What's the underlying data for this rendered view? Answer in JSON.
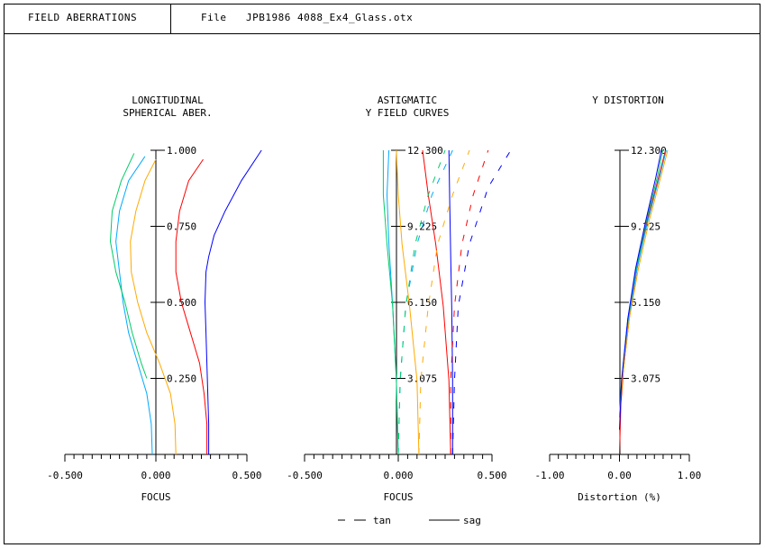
{
  "header": {
    "title": "FIELD ABERRATIONS",
    "file_label": "File",
    "file_name": "JPB1986 4088_Ex4_Glass.otx"
  },
  "chart_data": [
    {
      "type": "line",
      "title": [
        "LONGITUDINAL",
        "SPHERICAL ABER."
      ],
      "xlabel": "FOCUS",
      "xlim": [
        -0.5,
        0.5
      ],
      "xticks": [
        "-0.500",
        "0.000",
        "0.500"
      ],
      "ylim": [
        0,
        1
      ],
      "yticks": [
        "0.250",
        "0.500",
        "0.750",
        "1.000"
      ],
      "ytick_values": [
        0.25,
        0.5,
        0.75,
        1.0
      ],
      "series": [
        {
          "color": "#0000ff",
          "points": [
            [
              0.29,
              0
            ],
            [
              0.29,
              0.1
            ],
            [
              0.285,
              0.2
            ],
            [
              0.28,
              0.3
            ],
            [
              0.275,
              0.4
            ],
            [
              0.27,
              0.5
            ],
            [
              0.275,
              0.6
            ],
            [
              0.29,
              0.65
            ],
            [
              0.32,
              0.72
            ],
            [
              0.38,
              0.8
            ],
            [
              0.47,
              0.9
            ],
            [
              0.58,
              1.0
            ]
          ]
        },
        {
          "color": "#ff0000",
          "points": [
            [
              0.28,
              0
            ],
            [
              0.28,
              0.1
            ],
            [
              0.265,
              0.2
            ],
            [
              0.24,
              0.3
            ],
            [
              0.19,
              0.4
            ],
            [
              0.14,
              0.5
            ],
            [
              0.11,
              0.6
            ],
            [
              0.11,
              0.7
            ],
            [
              0.13,
              0.8
            ],
            [
              0.18,
              0.9
            ],
            [
              0.26,
              0.97
            ]
          ]
        },
        {
          "color": "#ffaa00",
          "points": [
            [
              0.11,
              0
            ],
            [
              0.105,
              0.1
            ],
            [
              0.08,
              0.2
            ],
            [
              0.02,
              0.3
            ],
            [
              -0.05,
              0.4
            ],
            [
              -0.1,
              0.5
            ],
            [
              -0.135,
              0.6
            ],
            [
              -0.14,
              0.7
            ],
            [
              -0.11,
              0.8
            ],
            [
              -0.06,
              0.9
            ],
            [
              0.0,
              0.97
            ]
          ]
        },
        {
          "color": "#00aaff",
          "points": [
            [
              -0.02,
              0
            ],
            [
              -0.025,
              0.1
            ],
            [
              -0.05,
              0.2
            ],
            [
              -0.1,
              0.3
            ],
            [
              -0.15,
              0.4
            ],
            [
              -0.18,
              0.5
            ],
            [
              -0.2,
              0.6
            ],
            [
              -0.22,
              0.7
            ],
            [
              -0.2,
              0.8
            ],
            [
              -0.15,
              0.9
            ],
            [
              -0.06,
              0.98
            ]
          ]
        },
        {
          "color": "#00cc66",
          "points": [
            [
              -0.05,
              0.25
            ],
            [
              -0.08,
              0.3
            ],
            [
              -0.13,
              0.4
            ],
            [
              -0.17,
              0.5
            ],
            [
              -0.22,
              0.6
            ],
            [
              -0.25,
              0.7
            ],
            [
              -0.24,
              0.8
            ],
            [
              -0.19,
              0.9
            ],
            [
              -0.12,
              0.99
            ]
          ]
        }
      ]
    },
    {
      "type": "line",
      "title": [
        "ASTIGMATIC",
        "Y FIELD CURVES"
      ],
      "xlabel": "FOCUS",
      "xlim": [
        -0.5,
        0.5
      ],
      "xticks": [
        "-0.500",
        "0.000",
        "0.500"
      ],
      "ylim": [
        0,
        12.3
      ],
      "yticks": [
        "3.075",
        "6.150",
        "9.225",
        "12.300"
      ],
      "ytick_values": [
        3.075,
        6.15,
        9.225,
        12.3
      ],
      "legend": [
        "tan",
        "sag"
      ],
      "series": [
        {
          "color": "#0000ff",
          "style": "sag",
          "points": [
            [
              0.29,
              0
            ],
            [
              0.29,
              3
            ],
            [
              0.285,
              6
            ],
            [
              0.28,
              8
            ],
            [
              0.275,
              10
            ],
            [
              0.27,
              12.3
            ]
          ]
        },
        {
          "color": "#0000ff",
          "style": "tan",
          "points": [
            [
              0.29,
              0
            ],
            [
              0.3,
              3
            ],
            [
              0.32,
              6
            ],
            [
              0.38,
              8.5
            ],
            [
              0.48,
              10.8
            ],
            [
              0.6,
              12.3
            ]
          ]
        },
        {
          "color": "#ff0000",
          "style": "sag",
          "points": [
            [
              0.28,
              0
            ],
            [
              0.27,
              3
            ],
            [
              0.24,
              6
            ],
            [
              0.2,
              8.5
            ],
            [
              0.16,
              10.5
            ],
            [
              0.13,
              12.3
            ]
          ]
        },
        {
          "color": "#ff0000",
          "style": "tan",
          "points": [
            [
              0.28,
              0
            ],
            [
              0.28,
              3
            ],
            [
              0.3,
              6
            ],
            [
              0.34,
              8.5
            ],
            [
              0.4,
              10.5
            ],
            [
              0.48,
              12.3
            ]
          ]
        },
        {
          "color": "#ffaa00",
          "style": "sag",
          "points": [
            [
              0.11,
              0
            ],
            [
              0.1,
              3
            ],
            [
              0.06,
              6
            ],
            [
              0.02,
              8.5
            ],
            [
              0.0,
              10.5
            ],
            [
              -0.01,
              12.3
            ]
          ]
        },
        {
          "color": "#ffaa00",
          "style": "tan",
          "points": [
            [
              0.11,
              0
            ],
            [
              0.12,
              3
            ],
            [
              0.16,
              6
            ],
            [
              0.21,
              8.5
            ],
            [
              0.29,
              10.5
            ],
            [
              0.38,
              12.3
            ]
          ]
        },
        {
          "color": "#00aaff",
          "style": "sag",
          "points": [
            [
              0.0,
              0
            ],
            [
              -0.01,
              3
            ],
            [
              -0.03,
              6
            ],
            [
              -0.05,
              8.5
            ],
            [
              -0.06,
              10.5
            ],
            [
              -0.05,
              12.3
            ]
          ]
        },
        {
          "color": "#00aaff",
          "style": "tan",
          "points": [
            [
              0.0,
              0
            ],
            [
              0.01,
              3
            ],
            [
              0.04,
              6
            ],
            [
              0.1,
              8.5
            ],
            [
              0.18,
              10.5
            ],
            [
              0.29,
              12.3
            ]
          ]
        },
        {
          "color": "#00cc66",
          "style": "sag",
          "points": [
            [
              0.0,
              0
            ],
            [
              -0.01,
              3
            ],
            [
              -0.03,
              6
            ],
            [
              -0.06,
              8.5
            ],
            [
              -0.08,
              10.5
            ],
            [
              -0.08,
              12.3
            ]
          ]
        },
        {
          "color": "#00cc66",
          "style": "tan",
          "points": [
            [
              0.0,
              0
            ],
            [
              0.01,
              3
            ],
            [
              0.04,
              6
            ],
            [
              0.09,
              8.5
            ],
            [
              0.16,
              10.5
            ],
            [
              0.25,
              12.3
            ]
          ]
        }
      ]
    },
    {
      "type": "line",
      "title": [
        "Y DISTORTION"
      ],
      "xlabel": "Distortion (%)",
      "xlim": [
        -1.0,
        1.0
      ],
      "xticks": [
        "-1.00",
        "0.00",
        "1.00"
      ],
      "ylim": [
        0,
        12.3
      ],
      "yticks": [
        "3.075",
        "6.150",
        "9.225",
        "12.300"
      ],
      "ytick_values": [
        3.075,
        6.15,
        9.225,
        12.3
      ],
      "series": [
        {
          "color": "#ff0000",
          "points": [
            [
              0,
              0
            ],
            [
              0.02,
              2
            ],
            [
              0.06,
              3.5
            ],
            [
              0.14,
              5.5
            ],
            [
              0.25,
              7.5
            ],
            [
              0.4,
              9.5
            ],
            [
              0.56,
              11.2
            ],
            [
              0.66,
              12.3
            ]
          ]
        },
        {
          "color": "#00cc66",
          "points": [
            [
              0,
              1.5
            ],
            [
              0.03,
              3
            ],
            [
              0.12,
              5.5
            ],
            [
              0.24,
              7.5
            ],
            [
              0.39,
              9.5
            ],
            [
              0.54,
              11.2
            ],
            [
              0.62,
              12.3
            ]
          ]
        },
        {
          "color": "#00aaff",
          "points": [
            [
              0,
              1.5
            ],
            [
              0.035,
              3
            ],
            [
              0.13,
              5.5
            ],
            [
              0.25,
              7.5
            ],
            [
              0.41,
              9.5
            ],
            [
              0.57,
              11.2
            ],
            [
              0.67,
              12.3
            ]
          ]
        },
        {
          "color": "#ffaa00",
          "points": [
            [
              0,
              1.5
            ],
            [
              0.04,
              3
            ],
            [
              0.14,
              5.5
            ],
            [
              0.27,
              7.5
            ],
            [
              0.43,
              9.5
            ],
            [
              0.59,
              11.2
            ],
            [
              0.69,
              12.3
            ]
          ]
        },
        {
          "color": "#0000ff",
          "points": [
            [
              0,
              1.0
            ],
            [
              0.03,
              3
            ],
            [
              0.12,
              5.5
            ],
            [
              0.23,
              7.5
            ],
            [
              0.38,
              9.5
            ],
            [
              0.52,
              11.2
            ],
            [
              0.6,
              12.3
            ]
          ]
        }
      ]
    }
  ]
}
